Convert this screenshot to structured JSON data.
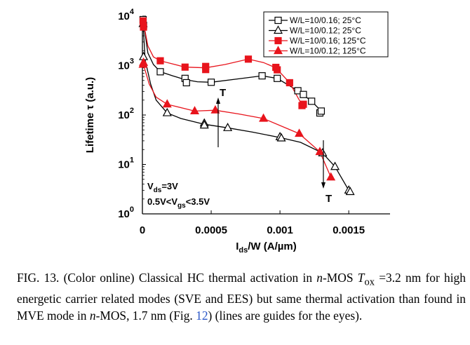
{
  "chart_data": {
    "type": "scatter",
    "title": "",
    "xlabel": "I_ds/W (A/µm)",
    "ylabel": "Lifetime τ (a.u.)",
    "xlim": [
      0,
      0.0018
    ],
    "ylim": [
      1,
      10000
    ],
    "yscale": "log",
    "x_ticks": [
      {
        "v": 0,
        "label": "0"
      },
      {
        "v": 0.0005,
        "label": "0.0005"
      },
      {
        "v": 0.001,
        "label": "0.001"
      },
      {
        "v": 0.0015,
        "label": "0.0015"
      }
    ],
    "y_ticks": [
      {
        "v": 1,
        "base": "10",
        "exp": "0"
      },
      {
        "v": 10,
        "base": "10",
        "exp": "1"
      },
      {
        "v": 100,
        "base": "10",
        "exp": "2"
      },
      {
        "v": 1000,
        "base": "10",
        "exp": "3"
      },
      {
        "v": 10000,
        "base": "10",
        "exp": "4"
      }
    ],
    "grid": false,
    "legend_position": "top-right",
    "series": [
      {
        "name": "W/L=10/0.16; 25°C",
        "marker": "square-open",
        "color": "#000000",
        "points": [
          [
            5e-06,
            8500
          ],
          [
            8e-06,
            6500
          ],
          [
            0.00013,
            750
          ],
          [
            0.00031,
            550
          ],
          [
            0.00032,
            450
          ],
          [
            0.0005,
            460
          ],
          [
            0.00087,
            620
          ],
          [
            0.00098,
            550
          ],
          [
            0.00113,
            310
          ],
          [
            0.00117,
            260
          ],
          [
            0.00123,
            190
          ],
          [
            0.00129,
            110
          ],
          [
            0.0013,
            120
          ]
        ],
        "line": [
          [
            5e-06,
            8500
          ],
          [
            4e-05,
            1800
          ],
          [
            8e-05,
            1050
          ],
          [
            0.00013,
            750
          ],
          [
            0.00022,
            620
          ],
          [
            0.00031,
            520
          ],
          [
            0.0004,
            470
          ],
          [
            0.0005,
            460
          ],
          [
            0.0007,
            540
          ],
          [
            0.00087,
            620
          ],
          [
            0.00098,
            550
          ],
          [
            0.00113,
            310
          ],
          [
            0.00123,
            190
          ],
          [
            0.0013,
            120
          ]
        ]
      },
      {
        "name": "W/L=10/0.12; 25°C",
        "marker": "triangle-open",
        "color": "#000000",
        "points": [
          [
            5e-06,
            7000
          ],
          [
            8e-06,
            1500
          ],
          [
            0.00018,
            110
          ],
          [
            0.00045,
            68
          ],
          [
            0.00045,
            62
          ],
          [
            0.00062,
            55
          ],
          [
            0.001,
            36
          ],
          [
            0.00101,
            34
          ],
          [
            0.00131,
            17
          ],
          [
            0.0014,
            9
          ],
          [
            0.0015,
            3
          ],
          [
            0.00151,
            2.8
          ]
        ],
        "line": [
          [
            5e-06,
            7000
          ],
          [
            2e-05,
            1300
          ],
          [
            6e-05,
            420
          ],
          [
            0.0001,
            200
          ],
          [
            0.00018,
            110
          ],
          [
            0.00028,
            85
          ],
          [
            0.00045,
            65
          ],
          [
            0.00062,
            55
          ],
          [
            0.0008,
            45
          ],
          [
            0.001,
            35
          ],
          [
            0.00115,
            28
          ],
          [
            0.00131,
            17
          ],
          [
            0.0014,
            9
          ],
          [
            0.0015,
            3
          ]
        ]
      },
      {
        "name": "W/L=10/0.16; 125°C",
        "marker": "square-filled",
        "color": "#e8141c",
        "points": [
          [
            5e-06,
            8000
          ],
          [
            8e-06,
            6000
          ],
          [
            0.00013,
            1250
          ],
          [
            0.00031,
            930
          ],
          [
            0.00046,
            960
          ],
          [
            0.00046,
            830
          ],
          [
            0.00077,
            1350
          ],
          [
            0.00097,
            920
          ],
          [
            0.00098,
            820
          ],
          [
            0.00107,
            450
          ],
          [
            0.00116,
            155
          ],
          [
            0.00117,
            165
          ]
        ],
        "line": [
          [
            5e-06,
            8000
          ],
          [
            4e-05,
            2500
          ],
          [
            8e-05,
            1500
          ],
          [
            0.00013,
            1250
          ],
          [
            0.00031,
            930
          ],
          [
            0.00046,
            900
          ],
          [
            0.0006,
            1050
          ],
          [
            0.00077,
            1350
          ],
          [
            0.00088,
            1150
          ],
          [
            0.00097,
            900
          ],
          [
            0.00107,
            450
          ],
          [
            0.00116,
            160
          ]
        ]
      },
      {
        "name": "W/L=10/0.12; 125°C",
        "marker": "triangle-filled",
        "color": "#e8141c",
        "points": [
          [
            5e-06,
            1050
          ],
          [
            8e-06,
            1150
          ],
          [
            0.00018,
            165
          ],
          [
            0.00038,
            120
          ],
          [
            0.00053,
            125
          ],
          [
            0.00088,
            85
          ],
          [
            0.00114,
            42
          ],
          [
            0.00129,
            18
          ],
          [
            0.00137,
            5.5
          ]
        ],
        "line": [
          [
            5e-06,
            1100
          ],
          [
            5e-05,
            420
          ],
          [
            0.0001,
            230
          ],
          [
            0.00018,
            165
          ],
          [
            0.00038,
            120
          ],
          [
            0.00053,
            125
          ],
          [
            0.0007,
            105
          ],
          [
            0.00088,
            85
          ],
          [
            0.00114,
            42
          ],
          [
            0.00129,
            18
          ],
          [
            0.00137,
            5.5
          ]
        ]
      }
    ],
    "annotations": {
      "vds": {
        "main": "V",
        "sub": "ds",
        "rest": "=3V"
      },
      "vgs": {
        "pre": "0.5V<V",
        "sub": "gs",
        "rest": "<3.5V"
      },
      "t_up": "T",
      "t_down": "T"
    }
  },
  "caption": {
    "fig": "FIG. 13.",
    "text1": "(Color online) Classical HC thermal activation in",
    "n1": "n",
    "text2": "-MOS",
    "tox": "T",
    "tox_sub": "ox",
    "text3": "=3.2 nm for high energetic carrier related modes (SVE and EES) but same thermal activation than found in MVE mode in",
    "n2": "n",
    "text4": "-MOS, 1.7 nm (Fig.",
    "ref": "12",
    "text5": ") (lines are guides for the eyes)."
  }
}
